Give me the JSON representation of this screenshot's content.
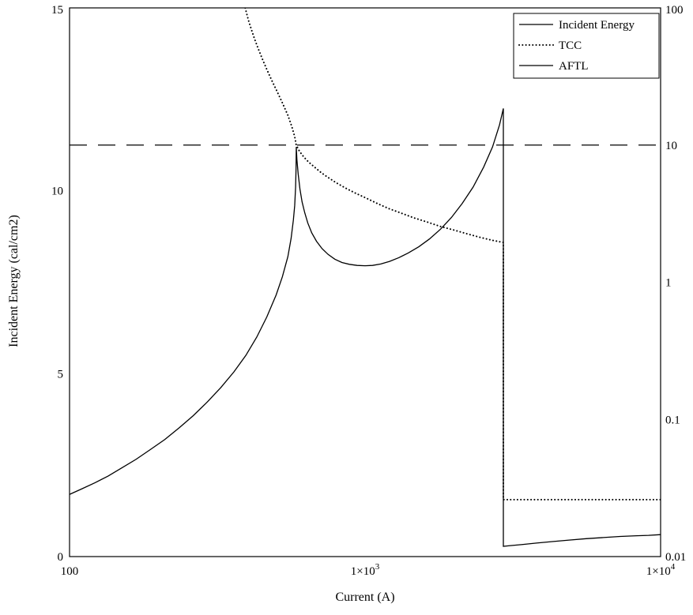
{
  "figure": {
    "background": "#ffffff",
    "line_color": "#000000"
  },
  "chart_data": {
    "type": "line",
    "title": "",
    "xlabel": "Current (A)",
    "ylabel_left": "Incident Energy (cal/cm2)",
    "x_scale": "log",
    "x_range": [
      100,
      10000
    ],
    "y_left_scale": "linear",
    "y_left_range": [
      0,
      15
    ],
    "y_right_scale": "log",
    "y_right_range": [
      0.01,
      100
    ],
    "grid": false,
    "legend_position": "top-right",
    "x_ticks": [
      {
        "v": 100,
        "label": "100"
      },
      {
        "v": 1000,
        "label": "1×10^3"
      },
      {
        "v": 10000,
        "label": "1×10^4"
      }
    ],
    "y_left_ticks": [
      {
        "v": 0,
        "label": "0"
      },
      {
        "v": 5,
        "label": "5"
      },
      {
        "v": 10,
        "label": "10"
      },
      {
        "v": 15,
        "label": "15"
      }
    ],
    "y_right_ticks": [
      {
        "v": 0.01,
        "label": "0.01"
      },
      {
        "v": 0.1,
        "label": "0.1"
      },
      {
        "v": 1,
        "label": "1"
      },
      {
        "v": 10,
        "label": "10"
      },
      {
        "v": 100,
        "label": "100"
      }
    ],
    "series": [
      {
        "name": "Incident Energy",
        "axis": "left",
        "style": "solid",
        "color": "#000000",
        "points": [
          [
            100,
            1.7
          ],
          [
            110,
            1.85
          ],
          [
            122,
            2.02
          ],
          [
            135,
            2.2
          ],
          [
            150,
            2.42
          ],
          [
            168,
            2.66
          ],
          [
            188,
            2.93
          ],
          [
            210,
            3.2
          ],
          [
            235,
            3.52
          ],
          [
            262,
            3.85
          ],
          [
            292,
            4.22
          ],
          [
            325,
            4.62
          ],
          [
            360,
            5.05
          ],
          [
            395,
            5.5
          ],
          [
            430,
            6.0
          ],
          [
            465,
            6.55
          ],
          [
            500,
            7.15
          ],
          [
            525,
            7.65
          ],
          [
            548,
            8.2
          ],
          [
            562,
            8.7
          ],
          [
            572,
            9.2
          ],
          [
            578,
            9.6
          ],
          [
            582,
            10.1
          ],
          [
            584,
            10.6
          ],
          [
            585,
            11.2
          ],
          [
            588,
            10.85
          ],
          [
            594,
            10.45
          ],
          [
            602,
            10.05
          ],
          [
            612,
            9.7
          ],
          [
            625,
            9.4
          ],
          [
            640,
            9.12
          ],
          [
            660,
            8.85
          ],
          [
            685,
            8.62
          ],
          [
            715,
            8.42
          ],
          [
            750,
            8.26
          ],
          [
            790,
            8.13
          ],
          [
            835,
            8.04
          ],
          [
            885,
            7.99
          ],
          [
            940,
            7.96
          ],
          [
            1000,
            7.95
          ],
          [
            1060,
            7.96
          ],
          [
            1130,
            8.0
          ],
          [
            1210,
            8.07
          ],
          [
            1300,
            8.17
          ],
          [
            1400,
            8.3
          ],
          [
            1520,
            8.47
          ],
          [
            1650,
            8.68
          ],
          [
            1800,
            8.95
          ],
          [
            1960,
            9.27
          ],
          [
            2130,
            9.65
          ],
          [
            2320,
            10.1
          ],
          [
            2520,
            10.65
          ],
          [
            2700,
            11.2
          ],
          [
            2850,
            11.8
          ],
          [
            2937,
            12.25
          ],
          [
            2937,
            0.28
          ],
          [
            3100,
            0.3
          ],
          [
            3400,
            0.33
          ],
          [
            3800,
            0.37
          ],
          [
            4300,
            0.41
          ],
          [
            4900,
            0.45
          ],
          [
            5600,
            0.49
          ],
          [
            6400,
            0.52
          ],
          [
            7300,
            0.55
          ],
          [
            8300,
            0.57
          ],
          [
            9100,
            0.58
          ],
          [
            10000,
            0.6
          ]
        ]
      },
      {
        "name": "TCC",
        "axis": "right",
        "style": "dotted",
        "color": "#000000",
        "points": [
          [
            393,
            100
          ],
          [
            398,
            90
          ],
          [
            404,
            80
          ],
          [
            412,
            70
          ],
          [
            422,
            60
          ],
          [
            434,
            51
          ],
          [
            448,
            43
          ],
          [
            464,
            36
          ],
          [
            482,
            30
          ],
          [
            502,
            25
          ],
          [
            524,
            20.5
          ],
          [
            548,
            16.5
          ],
          [
            566,
            13.5
          ],
          [
            578,
            11.5
          ],
          [
            585,
            10.0
          ],
          [
            600,
            9.0
          ],
          [
            620,
            8.2
          ],
          [
            645,
            7.5
          ],
          [
            675,
            6.9
          ],
          [
            710,
            6.3
          ],
          [
            750,
            5.8
          ],
          [
            800,
            5.3
          ],
          [
            860,
            4.85
          ],
          [
            930,
            4.45
          ],
          [
            1010,
            4.1
          ],
          [
            1100,
            3.75
          ],
          [
            1200,
            3.45
          ],
          [
            1320,
            3.2
          ],
          [
            1460,
            2.95
          ],
          [
            1620,
            2.75
          ],
          [
            1800,
            2.55
          ],
          [
            2000,
            2.4
          ],
          [
            2220,
            2.25
          ],
          [
            2460,
            2.12
          ],
          [
            2700,
            2.02
          ],
          [
            2937,
            1.95
          ],
          [
            2937,
            0.026
          ],
          [
            10000,
            0.026
          ]
        ]
      },
      {
        "name": "AFTL",
        "axis": "right",
        "style": "dashed",
        "legend_style": "solid",
        "color": "#000000",
        "points": [
          [
            100,
            10
          ],
          [
            10000,
            10
          ]
        ]
      }
    ]
  }
}
